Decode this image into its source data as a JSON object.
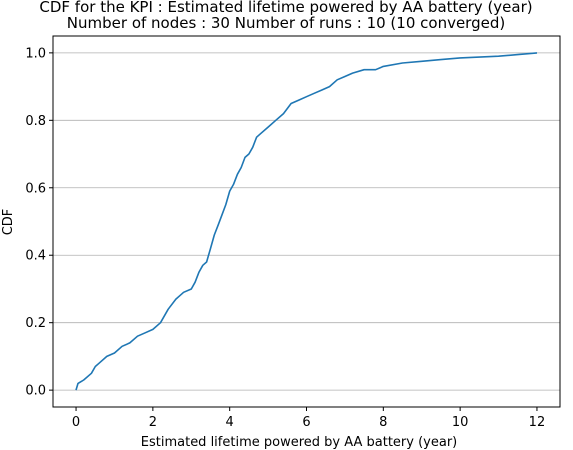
{
  "chart_data": {
    "type": "line",
    "title": "CDF for the KPI : Estimated lifetime powered by AA battery (year)",
    "subtitle": "Number of nodes : 30   Number of runs : 10 (10 converged)",
    "xlabel": "Estimated lifetime powered by AA battery (year)",
    "ylabel": "CDF",
    "xlim": [
      -0.6,
      12.6
    ],
    "ylim": [
      -0.05,
      1.05
    ],
    "xticks": [
      0,
      2,
      4,
      6,
      8,
      10,
      12
    ],
    "yticks": [
      0.0,
      0.2,
      0.4,
      0.6,
      0.8,
      1.0
    ],
    "xtick_labels": [
      "0",
      "2",
      "4",
      "6",
      "8",
      "10",
      "12"
    ],
    "ytick_labels": [
      "0.0",
      "0.2",
      "0.4",
      "0.6",
      "0.8",
      "1.0"
    ],
    "grid": "horizontal",
    "line_color": "#1f77b4",
    "series": [
      {
        "x": [
          0.0,
          0.05,
          0.2,
          0.4,
          0.5,
          0.6,
          0.8,
          1.0,
          1.2,
          1.4,
          1.6,
          1.8,
          2.0,
          2.2,
          2.4,
          2.6,
          2.7,
          2.8,
          3.0,
          3.1,
          3.2,
          3.3,
          3.4,
          3.5,
          3.6,
          3.7,
          3.8,
          3.9,
          4.0,
          4.1,
          4.2,
          4.3,
          4.4,
          4.5,
          4.6,
          4.7,
          4.8,
          5.0,
          5.2,
          5.4,
          5.6,
          5.8,
          6.0,
          6.2,
          6.4,
          6.6,
          6.8,
          7.0,
          7.2,
          7.5,
          7.8,
          8.0,
          8.5,
          9.0,
          9.5,
          10.0,
          11.0,
          11.5,
          12.0
        ],
        "y": [
          0.0,
          0.02,
          0.03,
          0.05,
          0.07,
          0.08,
          0.1,
          0.11,
          0.13,
          0.14,
          0.16,
          0.17,
          0.18,
          0.2,
          0.24,
          0.27,
          0.28,
          0.29,
          0.3,
          0.32,
          0.35,
          0.37,
          0.38,
          0.42,
          0.46,
          0.49,
          0.52,
          0.55,
          0.59,
          0.61,
          0.64,
          0.66,
          0.69,
          0.7,
          0.72,
          0.75,
          0.76,
          0.78,
          0.8,
          0.82,
          0.85,
          0.86,
          0.87,
          0.88,
          0.89,
          0.9,
          0.92,
          0.93,
          0.94,
          0.95,
          0.95,
          0.96,
          0.97,
          0.975,
          0.98,
          0.985,
          0.99,
          0.995,
          1.0
        ]
      }
    ]
  }
}
